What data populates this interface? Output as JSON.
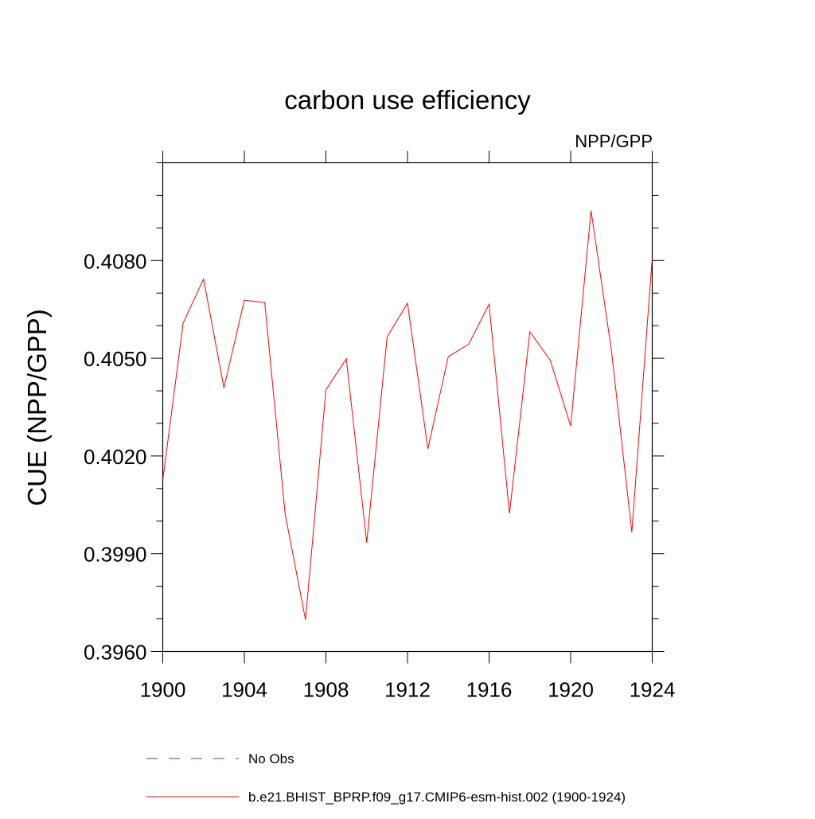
{
  "chart_data": {
    "type": "line",
    "title": "carbon use efficiency",
    "subtitle": "NPP/GPP",
    "xlabel": "",
    "ylabel": "CUE  (NPP/GPP)",
    "xlim": [
      1900,
      1924
    ],
    "ylim": [
      0.396,
      0.411
    ],
    "x_ticks": [
      1900,
      1904,
      1908,
      1912,
      1916,
      1920,
      1924
    ],
    "x_tick_labels": [
      "1900",
      "1904",
      "1908",
      "1912",
      "1916",
      "1920",
      "1924"
    ],
    "y_ticks": [
      0.396,
      0.399,
      0.402,
      0.405,
      0.408
    ],
    "y_tick_labels": [
      "0.3960",
      "0.3990",
      "0.4020",
      "0.4050",
      "0.4080"
    ],
    "grid": false,
    "series": [
      {
        "name": "No Obs",
        "color": "#4b3fa0",
        "style": "dashed",
        "x": [],
        "values": []
      },
      {
        "name": "b.e21.BHIST_BPRP.f09_g17.CMIP6-esm-hist.002 (1900-1924)",
        "color": "#ff0000",
        "style": "solid",
        "x": [
          1900,
          1901,
          1902,
          1903,
          1904,
          1905,
          1906,
          1907,
          1908,
          1909,
          1910,
          1911,
          1912,
          1913,
          1914,
          1915,
          1916,
          1917,
          1918,
          1919,
          1920,
          1921,
          1922,
          1923,
          1924
        ],
        "values": [
          0.40125,
          0.40608,
          0.40743,
          0.40409,
          0.40678,
          0.40671,
          0.40022,
          0.39697,
          0.40403,
          0.40498,
          0.39934,
          0.40565,
          0.40669,
          0.40222,
          0.40505,
          0.40543,
          0.40666,
          0.40023,
          0.40581,
          0.40494,
          0.40292,
          0.40953,
          0.40523,
          0.39966,
          0.40809
        ]
      }
    ],
    "legend": {
      "placement": "bottom",
      "entries": [
        {
          "label": "No Obs",
          "color": "#4b3fa0",
          "style": "dashed"
        },
        {
          "label": "b.e21.BHIST_BPRP.f09_g17.CMIP6-esm-hist.002 (1900-1924)",
          "color": "#ff0000",
          "style": "solid"
        }
      ]
    }
  }
}
